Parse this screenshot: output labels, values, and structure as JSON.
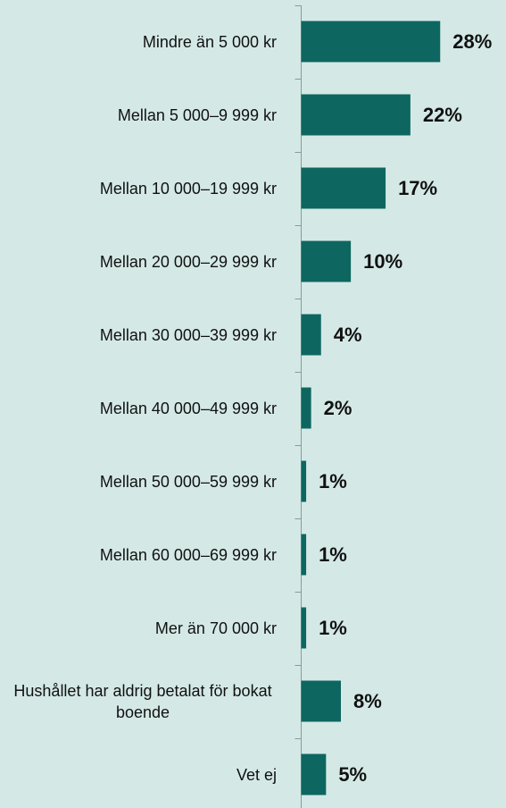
{
  "chart_data": {
    "type": "bar",
    "orientation": "horizontal",
    "categories": [
      "Mindre än 5 000 kr",
      "Mellan 5 000–9 999 kr",
      "Mellan 10 000–19 999 kr",
      "Mellan 20 000–29 999 kr",
      "Mellan 30 000–39 999 kr",
      "Mellan 40 000–49 999 kr",
      "Mellan 50 000–59 999 kr",
      "Mellan 60 000–69 999 kr",
      "Mer än 70 000 kr",
      "Hushållet har aldrig betalat för bokat boende",
      "Vet ej"
    ],
    "values": [
      28,
      22,
      17,
      10,
      4,
      2,
      1,
      1,
      1,
      8,
      5
    ],
    "value_labels": [
      "28%",
      "22%",
      "17%",
      "10%",
      "4%",
      "2%",
      "1%",
      "1%",
      "1%",
      "8%",
      "5%"
    ],
    "color": "#0e6660",
    "xlim": [
      0,
      40
    ]
  }
}
